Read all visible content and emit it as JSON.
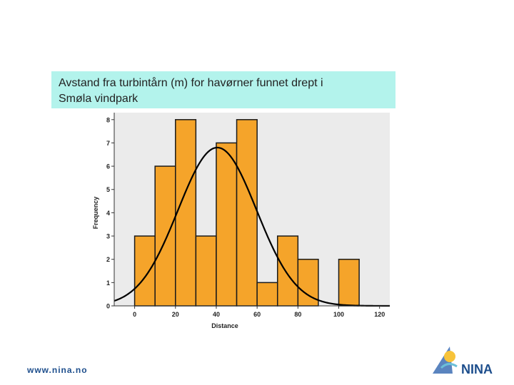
{
  "slide": {
    "title_line1": "Avstand fra turbintårn (m) for havørner funnet drept i",
    "title_line2": "Smøla vindpark",
    "footer_url": "www.nina.no",
    "logo_text": "NINA"
  },
  "colors": {
    "bar_fill": "#f5a42a",
    "bar_stroke": "#1a1a1a",
    "plot_bg": "#ebebeb",
    "curve": "#000000",
    "title_bg": "#b3f3ec",
    "brand_blue": "#1d4e8c"
  },
  "chart_data": {
    "type": "bar",
    "title": "",
    "xlabel": "Distance",
    "ylabel": "Frequency",
    "xlim": [
      -10,
      125
    ],
    "ylim": [
      0,
      8.3
    ],
    "x_ticks": [
      "0",
      "20",
      "40",
      "60",
      "80",
      "100",
      "120"
    ],
    "y_ticks": [
      "0",
      "1",
      "2",
      "3",
      "4",
      "5",
      "6",
      "7",
      "8"
    ],
    "bin_width": 10,
    "bins": [
      {
        "start": 0,
        "end": 10,
        "value": 3
      },
      {
        "start": 10,
        "end": 20,
        "value": 6
      },
      {
        "start": 20,
        "end": 30,
        "value": 8
      },
      {
        "start": 30,
        "end": 40,
        "value": 3
      },
      {
        "start": 40,
        "end": 50,
        "value": 7
      },
      {
        "start": 50,
        "end": 60,
        "value": 8
      },
      {
        "start": 60,
        "end": 70,
        "value": 1
      },
      {
        "start": 70,
        "end": 80,
        "value": 3
      },
      {
        "start": 80,
        "end": 90,
        "value": 2
      },
      {
        "start": 90,
        "end": 100,
        "value": 0
      },
      {
        "start": 100,
        "end": 110,
        "value": 2
      }
    ],
    "normal_curve": {
      "mean": 40.5,
      "sd": 19.2,
      "peak": 6.8
    }
  }
}
